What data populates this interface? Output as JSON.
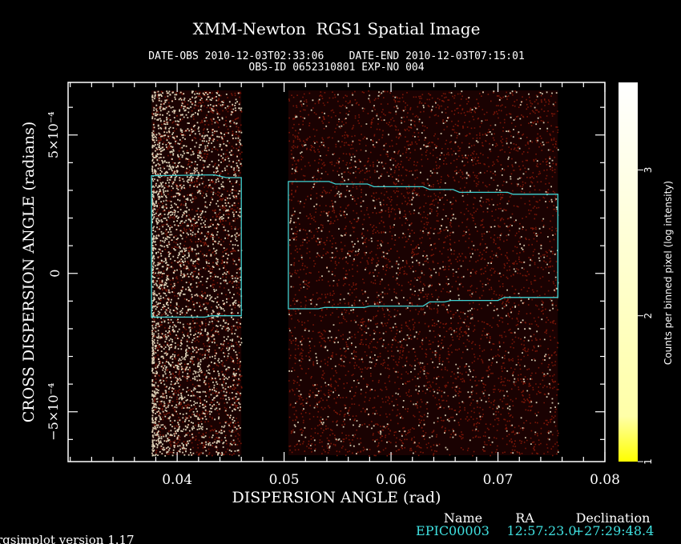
{
  "chart_data": {
    "type": "heatmap",
    "title": "XMM-Newton  RGS1 Spatial Image",
    "subtitle_line1": "DATE-OBS 2010-12-03T02:33:06    DATE-END 2010-12-03T07:15:01",
    "subtitle_line2": "OBS-ID 0652310801 EXP-NO 004",
    "xlabel": "DISPERSION ANGLE (rad)",
    "ylabel": "CROSS DISPERSION ANGLE (radians)",
    "xlim": [
      0.0298,
      0.08
    ],
    "ylim": [
      -0.00068,
      0.00069
    ],
    "x_ticks": [
      {
        "value": 0.04,
        "label": "0.04"
      },
      {
        "value": 0.05,
        "label": "0.05"
      },
      {
        "value": 0.06,
        "label": "0.06"
      },
      {
        "value": 0.07,
        "label": "0.07"
      },
      {
        "value": 0.08,
        "label": "0.08"
      }
    ],
    "y_ticks": [
      {
        "value": 0.0005,
        "label": "5×10⁻⁴"
      },
      {
        "value": 0,
        "label": "0"
      },
      {
        "value": -0.0005,
        "label": "−5×10⁻⁴"
      }
    ],
    "data_regions": [
      {
        "x0": 0.0376,
        "x1": 0.046,
        "density": "high"
      },
      {
        "x0": 0.0504,
        "x1": 0.0756,
        "density": "low"
      }
    ],
    "extraction_regions": [
      {
        "top": [
          [
            0.0376,
            0.000353
          ],
          [
            0.0435,
            0.000356
          ],
          [
            0.0446,
            0.000346
          ],
          [
            0.046,
            0.000346
          ]
        ],
        "bottom": [
          [
            0.0376,
            -0.000158
          ],
          [
            0.0426,
            -0.000158
          ],
          [
            0.0432,
            -0.000153
          ],
          [
            0.046,
            -0.000153
          ]
        ]
      },
      {
        "top": [
          [
            0.0504,
            0.000332
          ],
          [
            0.0542,
            0.000332
          ],
          [
            0.0548,
            0.000323
          ],
          [
            0.0578,
            0.000323
          ],
          [
            0.0584,
            0.000313
          ],
          [
            0.063,
            0.000313
          ],
          [
            0.0636,
            0.000303
          ],
          [
            0.0658,
            0.000303
          ],
          [
            0.0664,
            0.000293
          ],
          [
            0.0709,
            0.000293
          ],
          [
            0.0714,
            0.000286
          ],
          [
            0.0756,
            0.000286
          ]
        ],
        "bottom": [
          [
            0.0504,
            -0.000128
          ],
          [
            0.0532,
            -0.000128
          ],
          [
            0.0538,
            -0.000123
          ],
          [
            0.0575,
            -0.000123
          ],
          [
            0.058,
            -0.000118
          ],
          [
            0.063,
            -0.000118
          ],
          [
            0.0636,
            -0.000103
          ],
          [
            0.065,
            -0.000103
          ],
          [
            0.0656,
            -9.8e-05
          ],
          [
            0.07,
            -9.8e-05
          ],
          [
            0.0706,
            -8.7e-05
          ],
          [
            0.0756,
            -8.7e-05
          ]
        ]
      }
    ],
    "colorbar": {
      "label": "Counts per binned pixel (log intensity)",
      "range": [
        1,
        3.6
      ],
      "ticks": [
        {
          "value": 1,
          "label": "1"
        },
        {
          "value": 2,
          "label": "2"
        },
        {
          "value": 3,
          "label": "3"
        }
      ],
      "colors": [
        "#ffff00",
        "#ffffff"
      ]
    },
    "source_table": {
      "headers": {
        "name": "Name",
        "ra": "RA",
        "dec": "Declination"
      },
      "row": {
        "name": "EPIC00003",
        "ra": "12:57:23.0",
        "dec": "+27:29:48.4"
      }
    },
    "footer": "rgsimplot version 1.17",
    "colors": {
      "background": "#000000",
      "axes": "#ffffff",
      "region": "#3fd3d3",
      "source_text": "#3fe0e0",
      "noise": "#7a1608",
      "bright": "#fff6d6"
    }
  }
}
